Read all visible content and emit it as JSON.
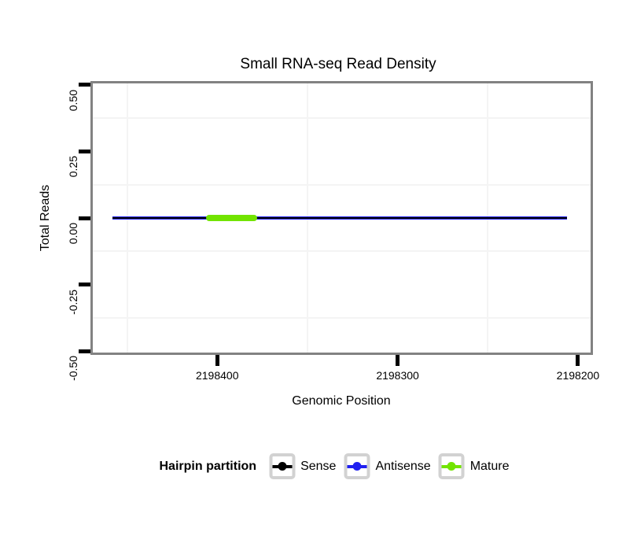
{
  "title": "Small RNA-seq Read Density",
  "chart_data": {
    "type": "line",
    "title": "Small RNA-seq Read Density",
    "xlabel": "Genomic Position",
    "ylabel": "Total Reads",
    "x_axis_reversed": true,
    "xlim_display": [
      2198469,
      2198193
    ],
    "ylim_display": [
      -0.505,
      0.505
    ],
    "x_ticks": [
      {
        "value": 2198400,
        "label": "2198400"
      },
      {
        "value": 2198300,
        "label": "2198300"
      },
      {
        "value": 2198200,
        "label": "2198200"
      }
    ],
    "y_ticks": [
      {
        "value": 0.5,
        "label": "0.50"
      },
      {
        "value": 0.25,
        "label": "0.25"
      },
      {
        "value": 0.0,
        "label": "0.00"
      },
      {
        "value": -0.25,
        "label": "-0.25"
      },
      {
        "value": -0.5,
        "label": "-0.50"
      }
    ],
    "x_minor_gridlines": [
      2198450,
      2198350,
      2198250
    ],
    "y_minor_gridlines": [
      0.375,
      0.125,
      -0.125,
      -0.375
    ],
    "grid": "minor-only",
    "series": [
      {
        "name": "Antisense",
        "color": "#2020f0",
        "y": 0,
        "x_from": 2198458,
        "x_to": 2198206
      },
      {
        "name": "Sense",
        "color": "#000000",
        "y": 0,
        "x_from": 2198458,
        "x_to": 2198206
      },
      {
        "name": "Mature",
        "color": "#72e400",
        "y": 0,
        "x_from": 2198406,
        "x_to": 2198378
      }
    ],
    "legend": {
      "title": "Hairpin partition",
      "position": "bottom",
      "items": [
        {
          "label": "Sense",
          "color": "#000000"
        },
        {
          "label": "Antisense",
          "color": "#2020f0"
        },
        {
          "label": "Mature",
          "color": "#72e400"
        }
      ]
    },
    "colors": {
      "panel_border": "#828282",
      "grid_minor": "#f4f4f4",
      "legend_key_border": "#d2d2d2",
      "tick_mark": "#000000"
    }
  }
}
